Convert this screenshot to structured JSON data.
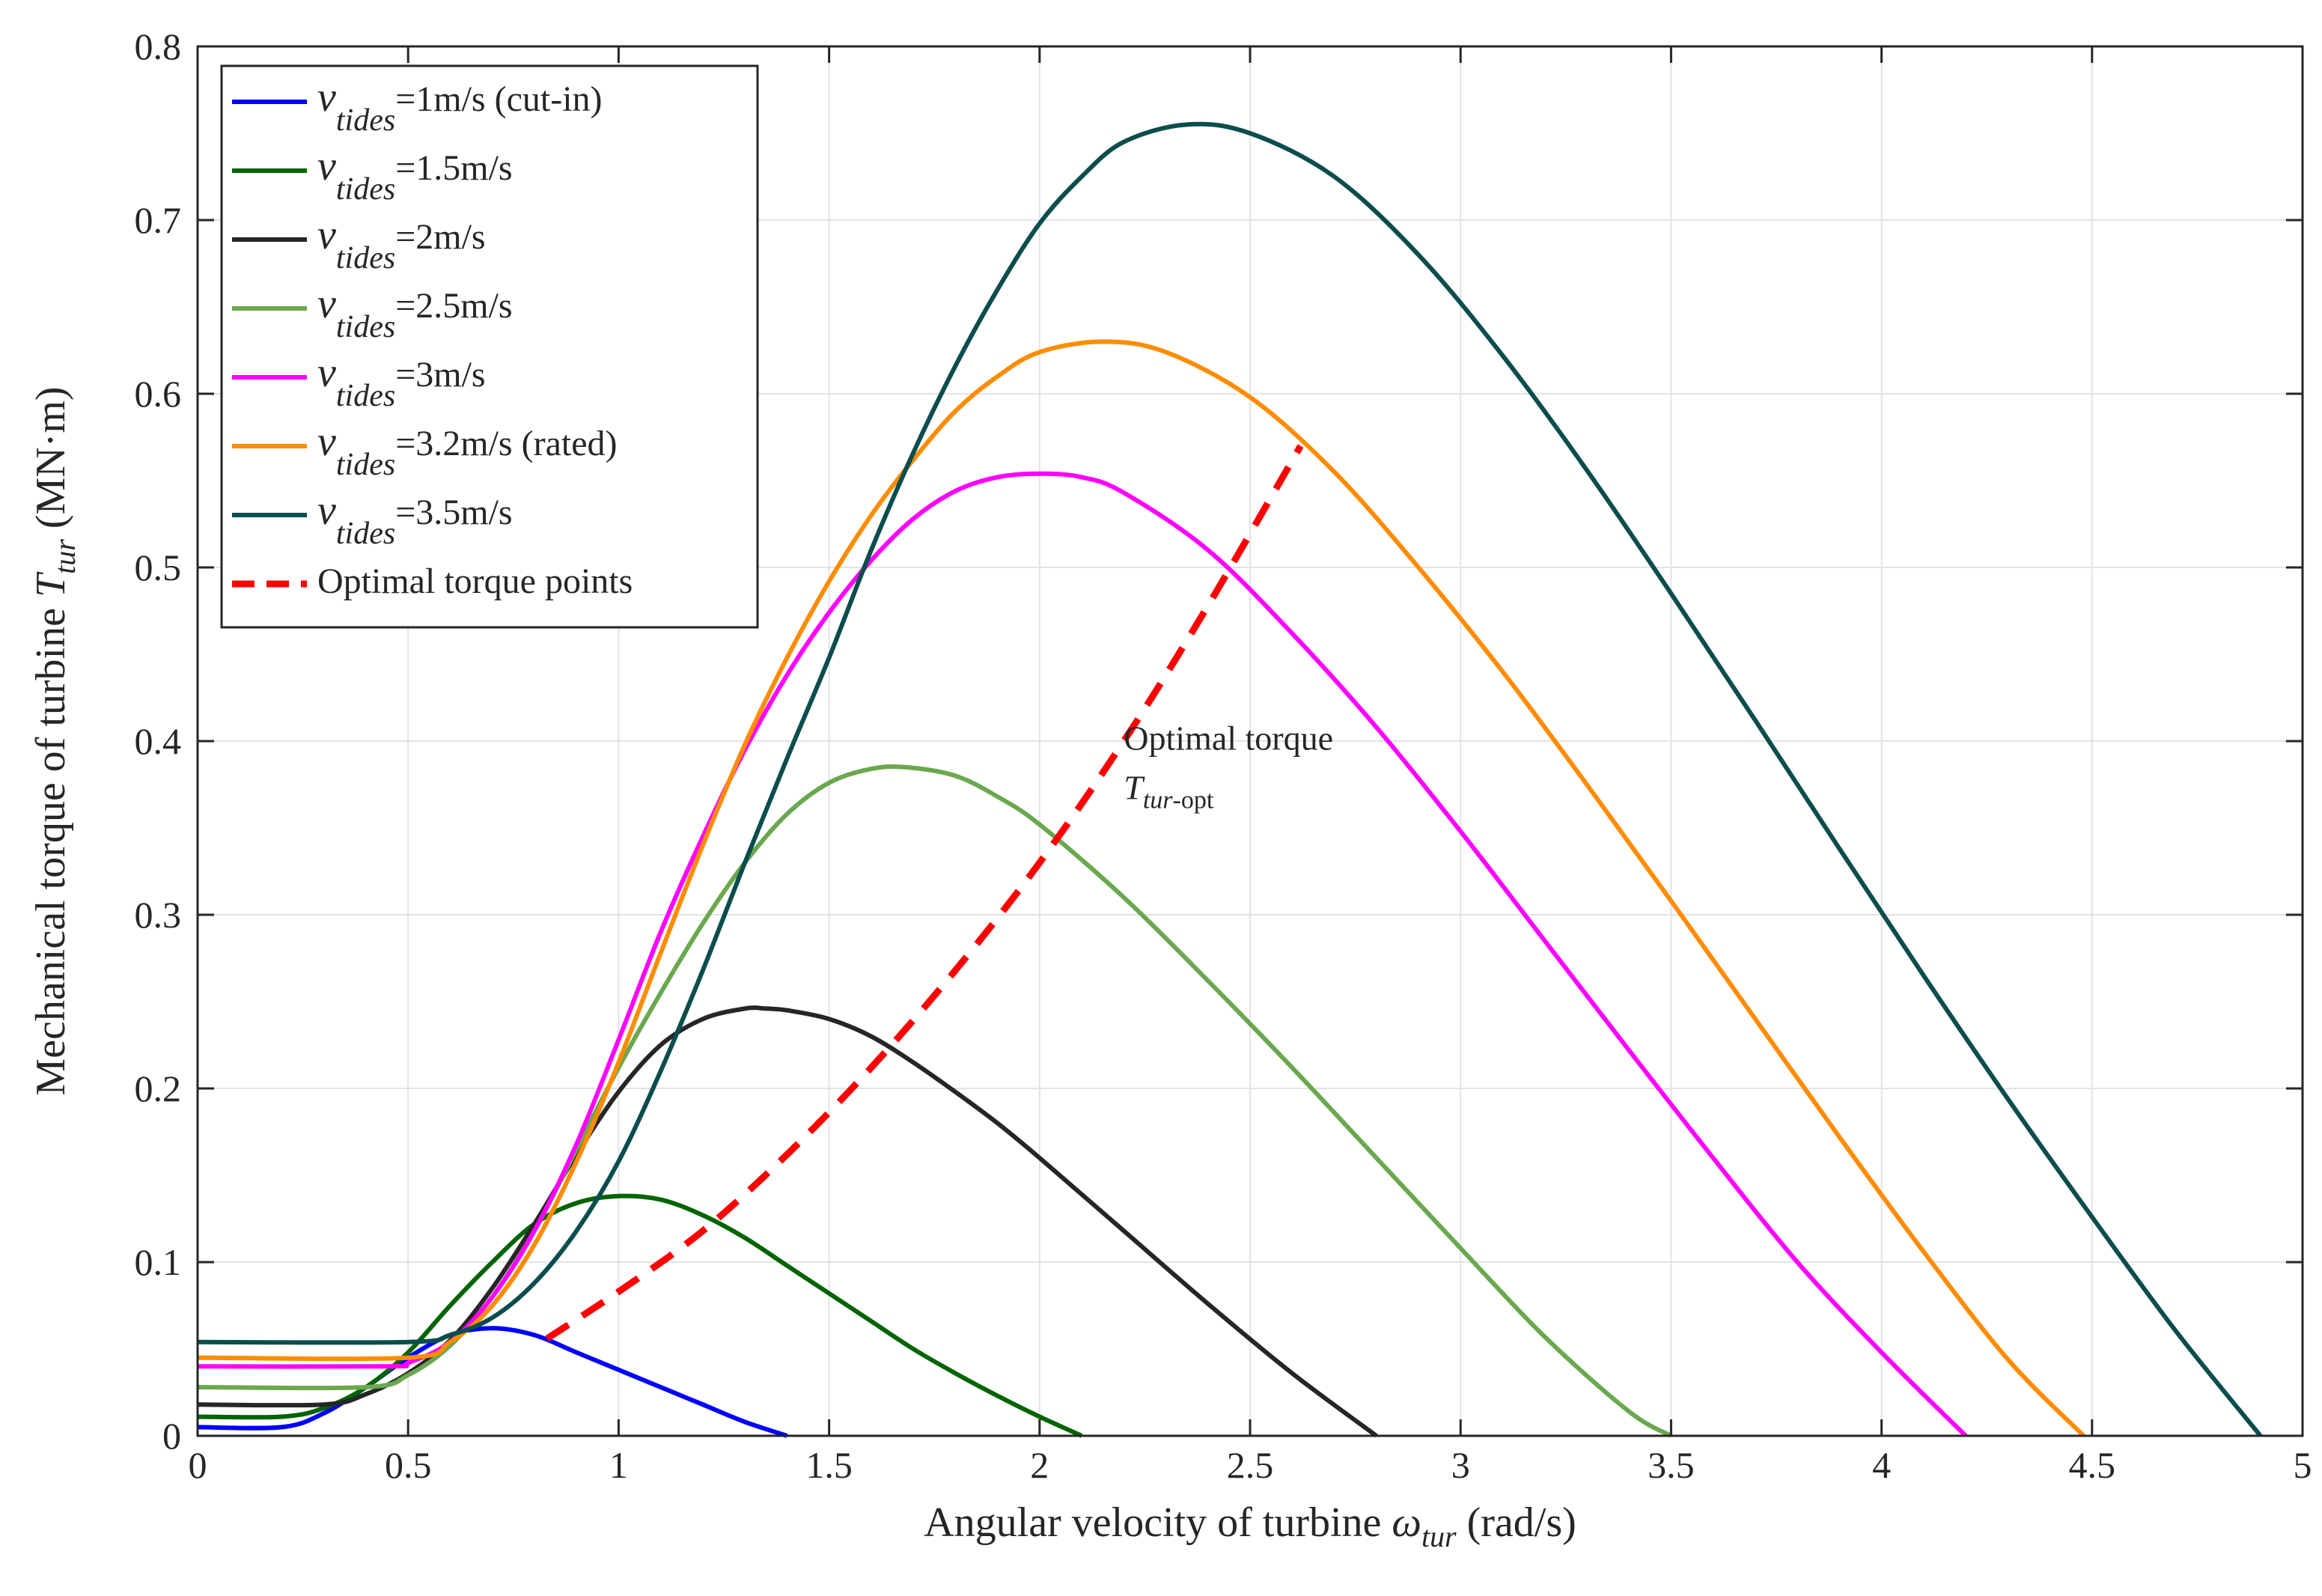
{
  "chart_data": {
    "type": "line",
    "title": "",
    "xlabel": {
      "prefix": "Angular velocity of turbine ",
      "symbol": "ω",
      "subscript": "tur",
      "suffix": " (rad/s)"
    },
    "ylabel": {
      "prefix": "Mechanical torque of turbine ",
      "symbol": "T",
      "subscript": "tur",
      "suffix": " (MN·m)"
    },
    "xlim": [
      0,
      5
    ],
    "ylim": [
      0,
      0.8
    ],
    "xticks": [
      0,
      0.5,
      1,
      1.5,
      2,
      2.5,
      3,
      3.5,
      4,
      4.5,
      5
    ],
    "xtick_labels": [
      "0",
      "0.5",
      "1",
      "1.5",
      "2",
      "2.5",
      "3",
      "3.5",
      "4",
      "4.5",
      "5"
    ],
    "yticks": [
      0,
      0.1,
      0.2,
      0.3,
      0.4,
      0.5,
      0.6,
      0.7,
      0.8
    ],
    "ytick_labels": [
      "0",
      "0.1",
      "0.2",
      "0.3",
      "0.4",
      "0.5",
      "0.6",
      "0.7",
      "0.8"
    ],
    "grid": true,
    "legend_position": "top-left",
    "series": [
      {
        "name": "νtides=1m/s (cut-in)",
        "legend_symbol": "ν",
        "legend_subscript": "tides",
        "legend_suffix": "=1m/s (cut-in)",
        "color": "#0000ff",
        "style": "solid",
        "x": [
          0,
          0.2,
          0.3,
          0.4,
          0.5,
          0.6,
          0.7,
          0.8,
          0.9,
          1.0,
          1.1,
          1.2,
          1.3,
          1.4
        ],
        "y": [
          0.005,
          0.005,
          0.013,
          0.028,
          0.045,
          0.058,
          0.062,
          0.058,
          0.048,
          0.038,
          0.028,
          0.018,
          0.008,
          0.0
        ]
      },
      {
        "name": "νtides=1.5m/s",
        "legend_symbol": "ν",
        "legend_subscript": "tides",
        "legend_suffix": "=1.5m/s",
        "color": "#006400",
        "style": "solid",
        "x": [
          0,
          0.2,
          0.3,
          0.4,
          0.5,
          0.6,
          0.7,
          0.8,
          0.9,
          1.0,
          1.1,
          1.2,
          1.3,
          1.4,
          1.5,
          1.6,
          1.7,
          1.8,
          1.9,
          2.0,
          2.1
        ],
        "y": [
          0.011,
          0.011,
          0.016,
          0.028,
          0.048,
          0.075,
          0.1,
          0.122,
          0.134,
          0.138,
          0.136,
          0.127,
          0.114,
          0.098,
          0.082,
          0.066,
          0.05,
          0.036,
          0.023,
          0.011,
          0.0
        ]
      },
      {
        "name": "νtides=2m/s",
        "legend_symbol": "ν",
        "legend_subscript": "tides",
        "legend_suffix": "=2m/s",
        "color": "#262626",
        "style": "solid",
        "x": [
          0,
          0.3,
          0.4,
          0.5,
          0.6,
          0.7,
          0.8,
          0.9,
          1.0,
          1.1,
          1.2,
          1.3,
          1.35,
          1.4,
          1.5,
          1.6,
          1.7,
          1.8,
          1.9,
          2.0,
          2.2,
          2.4,
          2.6,
          2.8
        ],
        "y": [
          0.018,
          0.018,
          0.024,
          0.036,
          0.055,
          0.085,
          0.122,
          0.162,
          0.198,
          0.225,
          0.24,
          0.246,
          0.246,
          0.245,
          0.24,
          0.23,
          0.215,
          0.198,
          0.18,
          0.16,
          0.118,
          0.076,
          0.036,
          0.0
        ]
      },
      {
        "name": "νtides=2.5m/s",
        "legend_symbol": "ν",
        "legend_subscript": "tides",
        "legend_suffix": "=2.5m/s",
        "color": "#6aa84f",
        "style": "solid",
        "x": [
          0,
          0.4,
          0.5,
          0.6,
          0.7,
          0.8,
          0.9,
          1.0,
          1.1,
          1.2,
          1.3,
          1.4,
          1.5,
          1.6,
          1.68,
          1.8,
          1.9,
          2.0,
          2.2,
          2.4,
          2.6,
          2.8,
          3.0,
          3.2,
          3.4,
          3.5
        ],
        "y": [
          0.028,
          0.028,
          0.035,
          0.052,
          0.08,
          0.118,
          0.165,
          0.212,
          0.255,
          0.295,
          0.33,
          0.358,
          0.376,
          0.384,
          0.385,
          0.38,
          0.368,
          0.352,
          0.31,
          0.262,
          0.212,
          0.16,
          0.108,
          0.057,
          0.014,
          0.0
        ]
      },
      {
        "name": "νtides=3m/s",
        "legend_symbol": "ν",
        "legend_subscript": "tides",
        "legend_suffix": "=3m/s",
        "color": "#ff00ff",
        "style": "solid",
        "x": [
          0,
          0.45,
          0.5,
          0.6,
          0.7,
          0.8,
          0.9,
          1.0,
          1.1,
          1.2,
          1.3,
          1.4,
          1.5,
          1.6,
          1.7,
          1.8,
          1.9,
          2.0,
          2.1,
          2.2,
          2.4,
          2.6,
          2.8,
          3.0,
          3.2,
          3.4,
          3.6,
          3.8,
          4.0,
          4.2
        ],
        "y": [
          0.04,
          0.04,
          0.042,
          0.054,
          0.08,
          0.118,
          0.168,
          0.228,
          0.29,
          0.345,
          0.395,
          0.438,
          0.474,
          0.504,
          0.528,
          0.544,
          0.552,
          0.554,
          0.552,
          0.543,
          0.51,
          0.462,
          0.408,
          0.348,
          0.285,
          0.222,
          0.16,
          0.1,
          0.048,
          0.0
        ]
      },
      {
        "name": "νtides=3.2m/s (rated)",
        "legend_symbol": "ν",
        "legend_subscript": "tides",
        "legend_suffix": "=3.2m/s (rated)",
        "color": "#ff8c00",
        "style": "solid",
        "x": [
          0,
          0.5,
          0.6,
          0.7,
          0.8,
          0.9,
          1.0,
          1.1,
          1.2,
          1.3,
          1.4,
          1.5,
          1.6,
          1.7,
          1.8,
          1.9,
          2.0,
          2.15,
          2.3,
          2.5,
          2.7,
          2.9,
          3.1,
          3.3,
          3.5,
          3.7,
          3.9,
          4.1,
          4.3,
          4.48
        ],
        "y": [
          0.045,
          0.045,
          0.054,
          0.075,
          0.11,
          0.158,
          0.215,
          0.278,
          0.34,
          0.398,
          0.448,
          0.492,
          0.53,
          0.562,
          0.59,
          0.61,
          0.624,
          0.63,
          0.624,
          0.598,
          0.555,
          0.5,
          0.44,
          0.375,
          0.308,
          0.24,
          0.172,
          0.106,
          0.044,
          0.0
        ]
      },
      {
        "name": "νtides=3.5m/s",
        "legend_symbol": "ν",
        "legend_subscript": "tides",
        "legend_suffix": "=3.5m/s",
        "color": "#0b4d4d",
        "style": "solid",
        "x": [
          0,
          0.5,
          0.6,
          0.7,
          0.8,
          0.9,
          1.0,
          1.1,
          1.2,
          1.3,
          1.4,
          1.5,
          1.6,
          1.7,
          1.8,
          1.9,
          2.0,
          2.1,
          2.2,
          2.35,
          2.5,
          2.7,
          2.9,
          3.1,
          3.3,
          3.5,
          3.7,
          3.9,
          4.1,
          4.3,
          4.5,
          4.7,
          4.9
        ],
        "y": [
          0.054,
          0.054,
          0.058,
          0.068,
          0.088,
          0.118,
          0.158,
          0.21,
          0.268,
          0.33,
          0.39,
          0.448,
          0.51,
          0.566,
          0.616,
          0.66,
          0.698,
          0.725,
          0.745,
          0.755,
          0.75,
          0.725,
          0.68,
          0.622,
          0.556,
          0.485,
          0.412,
          0.338,
          0.265,
          0.194,
          0.126,
          0.06,
          0.0
        ]
      },
      {
        "name": "Optimal torque points",
        "legend_symbol": "",
        "legend_subscript": "",
        "legend_suffix": "Optimal torque points",
        "color": "#ff0000",
        "style": "dashed",
        "x": [
          0.83,
          1.0,
          1.2,
          1.4,
          1.6,
          1.8,
          2.0,
          2.2,
          2.4,
          2.62
        ],
        "y": [
          0.056,
          0.083,
          0.118,
          0.162,
          0.212,
          0.268,
          0.33,
          0.4,
          0.478,
          0.57
        ]
      }
    ],
    "annotations": [
      {
        "line1": "Optimal torque",
        "symbol": "T",
        "subscript": "tur",
        "suffix": "-opt",
        "x": 2.2,
        "y": 0.395
      }
    ]
  }
}
